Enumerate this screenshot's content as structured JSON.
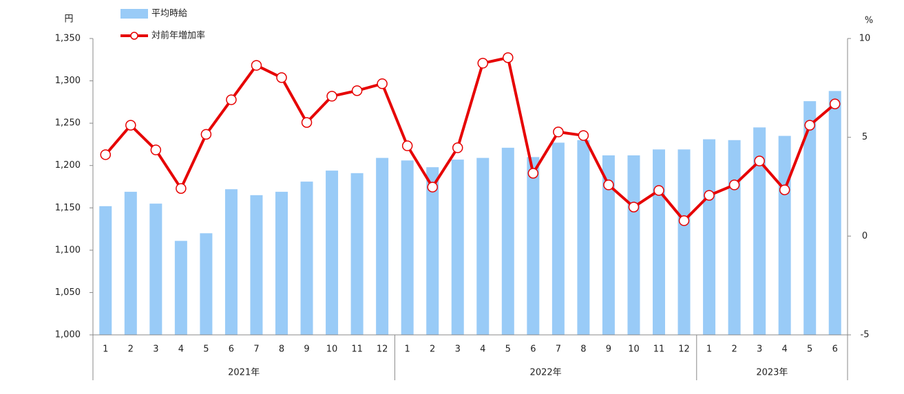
{
  "chart_data": {
    "type": "bar-line",
    "y_label": "円",
    "y2_label": "%",
    "groups": [
      {
        "label": "2021年",
        "months": [
          "1",
          "2",
          "3",
          "4",
          "5",
          "6",
          "7",
          "8",
          "9",
          "10",
          "11",
          "12"
        ]
      },
      {
        "label": "2022年",
        "months": [
          "1",
          "2",
          "3",
          "4",
          "5",
          "6",
          "7",
          "8",
          "9",
          "10",
          "11",
          "12"
        ]
      },
      {
        "label": "2023年",
        "months": [
          "1",
          "2",
          "3",
          "4",
          "5",
          "6"
        ]
      }
    ],
    "series": [
      {
        "name": "平均時給",
        "type": "bar",
        "color": "#99cbf7",
        "values": [
          1152,
          1169,
          1155,
          1111,
          1120,
          1172,
          1165,
          1169,
          1181,
          1194,
          1191,
          1209,
          1206,
          1198,
          1207,
          1209,
          1221,
          1210,
          1227,
          1230,
          1212,
          1212,
          1219,
          1219,
          1231,
          1230,
          1245,
          1235,
          1276,
          1288
        ]
      },
      {
        "name": "対前年増加率",
        "type": "line",
        "axis": "y2",
        "color": "#e60000",
        "values": [
          4.12,
          5.61,
          4.36,
          2.41,
          5.15,
          6.9,
          8.64,
          8.02,
          5.75,
          7.08,
          7.36,
          7.71,
          4.57,
          2.48,
          4.47,
          8.75,
          9.03,
          3.18,
          5.27,
          5.09,
          2.59,
          1.47,
          2.31,
          0.78,
          2.06,
          2.59,
          3.8,
          2.34,
          5.61,
          6.69
        ]
      }
    ],
    "ylim": [
      1000,
      1350
    ],
    "yticks": [
      {
        "value": 1000,
        "label": "1,000"
      },
      {
        "value": 1050,
        "label": "1,050"
      },
      {
        "value": 1100,
        "label": "1,100"
      },
      {
        "value": 1150,
        "label": "1,150"
      },
      {
        "value": 1200,
        "label": "1,200"
      },
      {
        "value": 1250,
        "label": "1,250"
      },
      {
        "value": 1300,
        "label": "1,300"
      },
      {
        "value": 1350,
        "label": "1,350"
      }
    ],
    "y2lim": [
      -5,
      10
    ],
    "y2ticks": [
      -5,
      0,
      5,
      10
    ]
  }
}
